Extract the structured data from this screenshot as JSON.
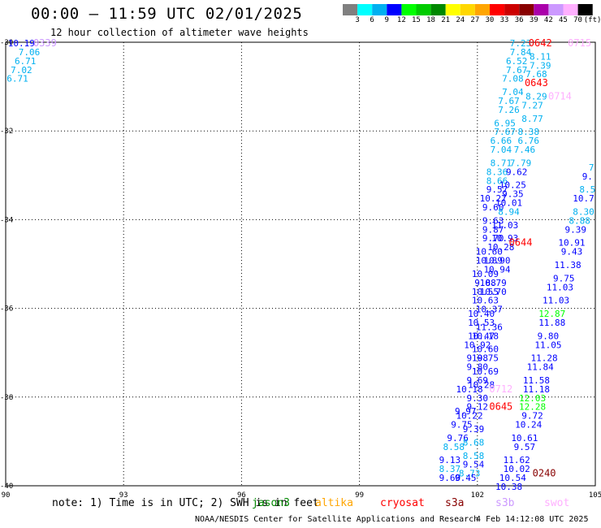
{
  "header": {
    "title": "00:00 – 11:59 UTC 02/01/2025",
    "subtitle": "12 hour collection of altimeter wave heights"
  },
  "colorbar": {
    "labels": [
      "3",
      "6",
      "9",
      "12",
      "15",
      "18",
      "21",
      "24",
      "27",
      "30",
      "33",
      "36",
      "39",
      "42",
      "45",
      "70",
      "(ft)"
    ],
    "colors": [
      "#808080",
      "#00ffff",
      "#00b0f0",
      "#0000ff",
      "#00ff00",
      "#00cc00",
      "#008800",
      "#ffff00",
      "#ffd700",
      "#ffa500",
      "#ff0000",
      "#cc0000",
      "#880000",
      "#aa00aa",
      "#cc99ff",
      "#ffb0ff",
      "#000000"
    ]
  },
  "axes": {
    "lon_labels": [
      "90",
      "93",
      "96",
      "99",
      "102",
      "105"
    ],
    "lat_labels": [
      "-30",
      "-32",
      "-34",
      "-36",
      "-38",
      "-40"
    ]
  },
  "footer": {
    "note": "note: 1) Time is in UTC; 2) SWH is in feet",
    "satellites": [
      {
        "name": "jason3",
        "color": "#008800"
      },
      {
        "name": "altika",
        "color": "#ffa500"
      },
      {
        "name": "cryosat",
        "color": "#ff0000"
      },
      {
        "name": "s3a",
        "color": "#880000"
      },
      {
        "name": "s3b",
        "color": "#cc99ff"
      },
      {
        "name": "swot",
        "color": "#ffb0ff"
      }
    ],
    "credit": "NOAA/NESDIS Center for Satellite Applications and Research",
    "timestamp": "4 Feb 14:12:08 UTC 2025"
  },
  "time_labels": [
    {
      "text": "0339",
      "color": "#cc99ff",
      "lon": 91.0,
      "lat": -30.0
    },
    {
      "text": "0642",
      "color": "#ff0000",
      "lon": 103.6,
      "lat": -30.0
    },
    {
      "text": "0715",
      "color": "#ffb0ff",
      "lon": 104.6,
      "lat": -30.0
    },
    {
      "text": "0643",
      "color": "#ff0000",
      "lon": 103.5,
      "lat": -30.9
    },
    {
      "text": "0714",
      "color": "#ffb0ff",
      "lon": 104.1,
      "lat": -31.2
    },
    {
      "text": "0644",
      "color": "#ff0000",
      "lon": 103.1,
      "lat": -34.5
    },
    {
      "text": "0712",
      "color": "#ffb0ff",
      "lon": 102.6,
      "lat": -37.8
    },
    {
      "text": "0645",
      "color": "#ff0000",
      "lon": 102.6,
      "lat": -38.2
    },
    {
      "text": "0240",
      "color": "#880000",
      "lon": 103.7,
      "lat": -39.7
    }
  ],
  "wave_heights": [
    {
      "text": "10.19",
      "color": "#0000ff",
      "lon": 90.4,
      "lat": -30.0
    },
    {
      "text": "7.06",
      "color": "#00b0f0",
      "lon": 90.6,
      "lat": -30.2
    },
    {
      "text": "6.71",
      "color": "#00b0f0",
      "lon": 90.5,
      "lat": -30.4
    },
    {
      "text": "7.02",
      "color": "#00b0f0",
      "lon": 90.4,
      "lat": -30.6
    },
    {
      "text": "6.71",
      "color": "#00b0f0",
      "lon": 90.3,
      "lat": -30.8
    },
    {
      "text": "7.23",
      "color": "#00b0f0",
      "lon": 103.1,
      "lat": -30.0
    },
    {
      "text": "7.84",
      "color": "#00b0f0",
      "lon": 103.1,
      "lat": -30.2
    },
    {
      "text": "6.52",
      "color": "#00b0f0",
      "lon": 103.0,
      "lat": -30.4
    },
    {
      "text": "7.67",
      "color": "#00b0f0",
      "lon": 103.0,
      "lat": -30.6
    },
    {
      "text": "7.08",
      "color": "#00b0f0",
      "lon": 102.9,
      "lat": -30.8
    },
    {
      "text": "7.04",
      "color": "#00b0f0",
      "lon": 102.9,
      "lat": -31.1
    },
    {
      "text": "7.67",
      "color": "#00b0f0",
      "lon": 102.8,
      "lat": -31.3
    },
    {
      "text": "7.26",
      "color": "#00b0f0",
      "lon": 102.8,
      "lat": -31.5
    },
    {
      "text": "6.95",
      "color": "#00b0f0",
      "lon": 102.7,
      "lat": -31.8
    },
    {
      "text": "7.67",
      "color": "#00b0f0",
      "lon": 102.7,
      "lat": -32.0
    },
    {
      "text": "6.66",
      "color": "#00b0f0",
      "lon": 102.6,
      "lat": -32.2
    },
    {
      "text": "7.04",
      "color": "#00b0f0",
      "lon": 102.6,
      "lat": -32.4
    },
    {
      "text": "8.71",
      "color": "#00b0f0",
      "lon": 102.6,
      "lat": -32.7
    },
    {
      "text": "8.36",
      "color": "#00b0f0",
      "lon": 102.5,
      "lat": -32.9
    },
    {
      "text": "8.66",
      "color": "#00b0f0",
      "lon": 102.5,
      "lat": -33.1
    },
    {
      "text": "9.57",
      "color": "#0000ff",
      "lon": 102.5,
      "lat": -33.3
    },
    {
      "text": "10.27",
      "color": "#0000ff",
      "lon": 102.4,
      "lat": -33.5
    },
    {
      "text": "9.60",
      "color": "#0000ff",
      "lon": 102.4,
      "lat": -33.7
    },
    {
      "text": "9.63",
      "color": "#0000ff",
      "lon": 102.4,
      "lat": -34.0
    },
    {
      "text": "9.87",
      "color": "#0000ff",
      "lon": 102.4,
      "lat": -34.2
    },
    {
      "text": "9.70",
      "color": "#0000ff",
      "lon": 102.4,
      "lat": -34.4
    },
    {
      "text": "10.60",
      "color": "#0000ff",
      "lon": 102.3,
      "lat": -34.7
    },
    {
      "text": "10.89",
      "color": "#0000ff",
      "lon": 102.3,
      "lat": -34.9
    },
    {
      "text": "10.09",
      "color": "#0000ff",
      "lon": 102.2,
      "lat": -35.2
    },
    {
      "text": "9.88",
      "color": "#0000ff",
      "lon": 102.2,
      "lat": -35.4
    },
    {
      "text": "10.55",
      "color": "#0000ff",
      "lon": 102.2,
      "lat": -35.6
    },
    {
      "text": "10.63",
      "color": "#0000ff",
      "lon": 102.2,
      "lat": -35.8
    },
    {
      "text": "10.40",
      "color": "#0000ff",
      "lon": 102.1,
      "lat": -36.1
    },
    {
      "text": "10.53",
      "color": "#0000ff",
      "lon": 102.1,
      "lat": -36.3
    },
    {
      "text": "10.47",
      "color": "#0000ff",
      "lon": 102.1,
      "lat": -36.6
    },
    {
      "text": "10.92",
      "color": "#0000ff",
      "lon": 102.0,
      "lat": -36.8
    },
    {
      "text": "9.98",
      "color": "#0000ff",
      "lon": 102.0,
      "lat": -37.1
    },
    {
      "text": "9.80",
      "color": "#0000ff",
      "lon": 102.0,
      "lat": -37.3
    },
    {
      "text": "9.69",
      "color": "#0000ff",
      "lon": 102.0,
      "lat": -37.6
    },
    {
      "text": "10.18",
      "color": "#0000ff",
      "lon": 101.8,
      "lat": -37.8
    },
    {
      "text": "9.30",
      "color": "#0000ff",
      "lon": 102.0,
      "lat": -38.0
    },
    {
      "text": "9.12",
      "color": "#0000ff",
      "lon": 102.0,
      "lat": -38.2
    },
    {
      "text": "9.97",
      "color": "#0000ff",
      "lon": 101.7,
      "lat": -38.3
    },
    {
      "text": "10.22",
      "color": "#0000ff",
      "lon": 101.8,
      "lat": -38.4
    },
    {
      "text": "9.75",
      "color": "#0000ff",
      "lon": 101.6,
      "lat": -38.6
    },
    {
      "text": "9.39",
      "color": "#0000ff",
      "lon": 101.9,
      "lat": -38.7
    },
    {
      "text": "9.76",
      "color": "#0000ff",
      "lon": 101.5,
      "lat": -38.9
    },
    {
      "text": "8.68",
      "color": "#00b0f0",
      "lon": 101.9,
      "lat": -39.0
    },
    {
      "text": "8.58",
      "color": "#00b0f0",
      "lon": 101.4,
      "lat": -39.1
    },
    {
      "text": "8.58",
      "color": "#00b0f0",
      "lon": 101.9,
      "lat": -39.3
    },
    {
      "text": "9.13",
      "color": "#0000ff",
      "lon": 101.3,
      "lat": -39.4
    },
    {
      "text": "9.54",
      "color": "#0000ff",
      "lon": 101.9,
      "lat": -39.5
    },
    {
      "text": "8.37",
      "color": "#00b0f0",
      "lon": 101.3,
      "lat": -39.6
    },
    {
      "text": "8.73",
      "color": "#00b0f0",
      "lon": 101.8,
      "lat": -39.7
    },
    {
      "text": "9.60",
      "color": "#0000ff",
      "lon": 101.3,
      "lat": -39.8
    },
    {
      "text": "9.45",
      "color": "#0000ff",
      "lon": 101.7,
      "lat": -39.8
    },
    {
      "text": "8.11",
      "color": "#00b0f0",
      "lon": 103.6,
      "lat": -30.3
    },
    {
      "text": "7.39",
      "color": "#00b0f0",
      "lon": 103.6,
      "lat": -30.5
    },
    {
      "text": "7.68",
      "color": "#00b0f0",
      "lon": 103.5,
      "lat": -30.7
    },
    {
      "text": "8.29",
      "color": "#00b0f0",
      "lon": 103.5,
      "lat": -31.2
    },
    {
      "text": "7.27",
      "color": "#00b0f0",
      "lon": 103.4,
      "lat": -31.4
    },
    {
      "text": "8.77",
      "color": "#00b0f0",
      "lon": 103.4,
      "lat": -31.7
    },
    {
      "text": "8.38",
      "color": "#00b0f0",
      "lon": 103.3,
      "lat": -32.0
    },
    {
      "text": "6.76",
      "color": "#00b0f0",
      "lon": 103.3,
      "lat": -32.2
    },
    {
      "text": "7.46",
      "color": "#00b0f0",
      "lon": 103.2,
      "lat": -32.4
    },
    {
      "text": "7.79",
      "color": "#00b0f0",
      "lon": 103.1,
      "lat": -32.7
    },
    {
      "text": "9.62",
      "color": "#0000ff",
      "lon": 103.0,
      "lat": -32.9
    },
    {
      "text": "10.25",
      "color": "#0000ff",
      "lon": 102.9,
      "lat": -33.2
    },
    {
      "text": "9.35",
      "color": "#0000ff",
      "lon": 102.9,
      "lat": -33.4
    },
    {
      "text": "10.01",
      "color": "#0000ff",
      "lon": 102.8,
      "lat": -33.6
    },
    {
      "text": "8.94",
      "color": "#00b0f0",
      "lon": 102.8,
      "lat": -33.8
    },
    {
      "text": "11.03",
      "color": "#0000ff",
      "lon": 102.7,
      "lat": -34.1
    },
    {
      "text": "10.93",
      "color": "#0000ff",
      "lon": 102.7,
      "lat": -34.4
    },
    {
      "text": "10.28",
      "color": "#0000ff",
      "lon": 102.6,
      "lat": -34.6
    },
    {
      "text": "10.90",
      "color": "#0000ff",
      "lon": 102.5,
      "lat": -34.9
    },
    {
      "text": "10.94",
      "color": "#0000ff",
      "lon": 102.5,
      "lat": -35.1
    },
    {
      "text": "10.79",
      "color": "#0000ff",
      "lon": 102.4,
      "lat": -35.4
    },
    {
      "text": "10.70",
      "color": "#0000ff",
      "lon": 102.4,
      "lat": -35.6
    },
    {
      "text": "10.37",
      "color": "#0000ff",
      "lon": 102.3,
      "lat": -36.0
    },
    {
      "text": "11.36",
      "color": "#0000ff",
      "lon": 102.3,
      "lat": -36.4
    },
    {
      "text": "10.18",
      "color": "#0000ff",
      "lon": 102.2,
      "lat": -36.6
    },
    {
      "text": "10.60",
      "color": "#0000ff",
      "lon": 102.2,
      "lat": -36.9
    },
    {
      "text": "10.75",
      "color": "#0000ff",
      "lon": 102.2,
      "lat": -37.1
    },
    {
      "text": "10.69",
      "color": "#0000ff",
      "lon": 102.2,
      "lat": -37.4
    },
    {
      "text": "10.28",
      "color": "#0000ff",
      "lon": 102.1,
      "lat": -37.7
    },
    {
      "text": "9.39",
      "color": "#0000ff",
      "lon": 104.5,
      "lat": -34.2
    },
    {
      "text": "10.91",
      "color": "#0000ff",
      "lon": 104.4,
      "lat": -34.5
    },
    {
      "text": "9.43",
      "color": "#0000ff",
      "lon": 104.4,
      "lat": -34.7
    },
    {
      "text": "11.38",
      "color": "#0000ff",
      "lon": 104.3,
      "lat": -35.0
    },
    {
      "text": "9.75",
      "color": "#0000ff",
      "lon": 104.2,
      "lat": -35.3
    },
    {
      "text": "11.03",
      "color": "#0000ff",
      "lon": 104.1,
      "lat": -35.5
    },
    {
      "text": "11.03",
      "color": "#0000ff",
      "lon": 104.0,
      "lat": -35.8
    },
    {
      "text": "12.87",
      "color": "#00ff00",
      "lon": 103.9,
      "lat": -36.1
    },
    {
      "text": "11.88",
      "color": "#0000ff",
      "lon": 103.9,
      "lat": -36.3
    },
    {
      "text": "9.80",
      "color": "#0000ff",
      "lon": 103.8,
      "lat": -36.6
    },
    {
      "text": "11.05",
      "color": "#0000ff",
      "lon": 103.8,
      "lat": -36.8
    },
    {
      "text": "11.28",
      "color": "#0000ff",
      "lon": 103.7,
      "lat": -37.1
    },
    {
      "text": "11.84",
      "color": "#0000ff",
      "lon": 103.6,
      "lat": -37.3
    },
    {
      "text": "11.58",
      "color": "#0000ff",
      "lon": 103.5,
      "lat": -37.6
    },
    {
      "text": "11.18",
      "color": "#0000ff",
      "lon": 103.5,
      "lat": -37.8
    },
    {
      "text": "12.03",
      "color": "#00ff00",
      "lon": 103.4,
      "lat": -38.0
    },
    {
      "text": "12.28",
      "color": "#00ff00",
      "lon": 103.4,
      "lat": -38.2
    },
    {
      "text": "9.72",
      "color": "#0000ff",
      "lon": 103.4,
      "lat": -38.4
    },
    {
      "text": "10.24",
      "color": "#0000ff",
      "lon": 103.3,
      "lat": -38.6
    },
    {
      "text": "10.61",
      "color": "#0000ff",
      "lon": 103.2,
      "lat": -38.9
    },
    {
      "text": "9.57",
      "color": "#0000ff",
      "lon": 103.2,
      "lat": -39.1
    },
    {
      "text": "11.62",
      "color": "#0000ff",
      "lon": 103.0,
      "lat": -39.4
    },
    {
      "text": "10.02",
      "color": "#0000ff",
      "lon": 103.0,
      "lat": -39.6
    },
    {
      "text": "10.54",
      "color": "#0000ff",
      "lon": 102.9,
      "lat": -39.8
    },
    {
      "text": "10.38",
      "color": "#0000ff",
      "lon": 102.8,
      "lat": -40.0
    },
    {
      "text": "8.88",
      "color": "#00b0f0",
      "lon": 104.6,
      "lat": -34.0
    },
    {
      "text": "8.30",
      "color": "#00b0f0",
      "lon": 104.7,
      "lat": -33.8
    },
    {
      "text": "10.7",
      "color": "#0000ff",
      "lon": 104.7,
      "lat": -33.5
    },
    {
      "text": "8.5",
      "color": "#00b0f0",
      "lon": 104.8,
      "lat": -33.3
    },
    {
      "text": "9.",
      "color": "#0000ff",
      "lon": 104.8,
      "lat": -33.0
    },
    {
      "text": "7",
      "color": "#00b0f0",
      "lon": 104.9,
      "lat": -32.8
    }
  ]
}
